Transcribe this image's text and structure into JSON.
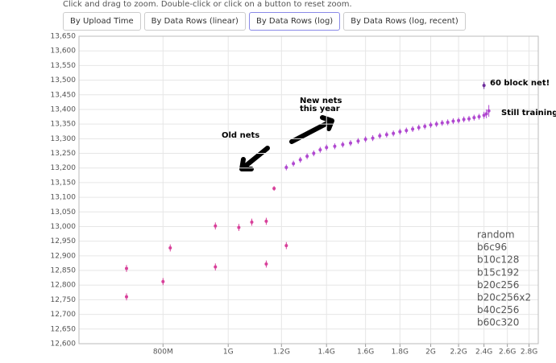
{
  "ui": {
    "instructions": "Click and drag to zoom. Double-click or click on a button to reset zoom.",
    "buttons": [
      "By Upload Time",
      "By Data Rows (linear)",
      "By Data Rows (log)",
      "By Data Rows (log, recent)"
    ]
  },
  "chart_data": {
    "type": "scatter",
    "log_x": true,
    "grid": true,
    "xlim": [
      600000000,
      2890000000
    ],
    "xticks": [
      {
        "value": 800000000,
        "label": "800M"
      },
      {
        "value": 1000000000,
        "label": "1G"
      },
      {
        "value": 1200000000,
        "label": "1.2G"
      },
      {
        "value": 1400000000,
        "label": "1.4G"
      },
      {
        "value": 1600000000,
        "label": "1.6G"
      },
      {
        "value": 1800000000,
        "label": "1.8G"
      },
      {
        "value": 2000000000,
        "label": "2G"
      },
      {
        "value": 2200000000,
        "label": "2.2G"
      },
      {
        "value": 2400000000,
        "label": "2.4G"
      },
      {
        "value": 2600000000,
        "label": "2.6G"
      },
      {
        "value": 2800000000,
        "label": "2.8G"
      }
    ],
    "ylim": [
      12600,
      13650
    ],
    "yticks": [
      {
        "value": 12600,
        "label": "12,600"
      },
      {
        "value": 12650,
        "label": "12,650"
      },
      {
        "value": 12700,
        "label": "12,700"
      },
      {
        "value": 12750,
        "label": "12,750"
      },
      {
        "value": 12800,
        "label": "12,800"
      },
      {
        "value": 12850,
        "label": "12,850"
      },
      {
        "value": 12900,
        "label": "12,900"
      },
      {
        "value": 12950,
        "label": "12,950"
      },
      {
        "value": 13000,
        "label": "13,000"
      },
      {
        "value": 13050,
        "label": "13,050"
      },
      {
        "value": 13100,
        "label": "13,100"
      },
      {
        "value": 13150,
        "label": "13,150"
      },
      {
        "value": 13200,
        "label": "13,200"
      },
      {
        "value": 13250,
        "label": "13,250"
      },
      {
        "value": 13300,
        "label": "13,300"
      },
      {
        "value": 13350,
        "label": "13,350"
      },
      {
        "value": 13400,
        "label": "13,400"
      },
      {
        "value": 13450,
        "label": "13,450"
      },
      {
        "value": 13500,
        "label": "13,500"
      },
      {
        "value": 13550,
        "label": "13,550"
      },
      {
        "value": 13600,
        "label": "13,600"
      },
      {
        "value": 13650,
        "label": "13,650"
      }
    ],
    "annotations": [
      "Old nets",
      "New nets",
      "this year",
      "60 block net!",
      "Still training!"
    ],
    "series": [
      {
        "name": "random",
        "color": "#a6d64a",
        "x": [],
        "values": [],
        "errors": []
      },
      {
        "name": "b6c96",
        "color": "#c8ac2e",
        "x": [],
        "values": [],
        "errors": []
      },
      {
        "name": "b10c128",
        "color": "#f08c3a",
        "x": [],
        "values": [],
        "errors": []
      },
      {
        "name": "b15c192",
        "color": "#ee6a48",
        "x": [],
        "values": [],
        "errors": []
      },
      {
        "name": "b20c256",
        "color": "#e6485e",
        "x": [],
        "values": [],
        "errors": []
      },
      {
        "name": "b20c256x2",
        "color": "#d8409a",
        "x": [
          706000000,
          706000000,
          800000000,
          820000000,
          957000000,
          957000000,
          1037000000,
          1084000000,
          1139000000,
          1139000000,
          1170000000,
          1220000000
        ],
        "values": [
          12857,
          12760,
          12812,
          12927,
          13002,
          12862,
          12997,
          13015,
          13018,
          12872,
          13130,
          12935
        ],
        "errors": [
          12,
          12,
          12,
          12,
          12,
          12,
          12,
          12,
          12,
          12,
          8,
          12
        ]
      },
      {
        "name": "b40c256",
        "color": "#b048d0",
        "x": [
          1220000000,
          1250000000,
          1280000000,
          1310000000,
          1340000000,
          1370000000,
          1400000000,
          1440000000,
          1480000000,
          1520000000,
          1560000000,
          1600000000,
          1640000000,
          1680000000,
          1720000000,
          1760000000,
          1800000000,
          1840000000,
          1880000000,
          1920000000,
          1960000000,
          2000000000,
          2040000000,
          2080000000,
          2120000000,
          2160000000,
          2200000000,
          2240000000,
          2280000000,
          2320000000,
          2360000000,
          2400000000,
          2420000000,
          2440000000
        ],
        "values": [
          13202,
          13215,
          13228,
          13240,
          13250,
          13262,
          13270,
          13274,
          13280,
          13285,
          13292,
          13298,
          13302,
          13310,
          13314,
          13318,
          13324,
          13328,
          13333,
          13338,
          13342,
          13347,
          13350,
          13354,
          13356,
          13360,
          13362,
          13366,
          13368,
          13372,
          13375,
          13380,
          13385,
          13395
        ],
        "errors": [
          10,
          10,
          10,
          10,
          10,
          10,
          10,
          10,
          10,
          10,
          10,
          10,
          10,
          10,
          10,
          10,
          10,
          10,
          10,
          10,
          10,
          10,
          10,
          10,
          10,
          10,
          10,
          10,
          10,
          10,
          10,
          12,
          15,
          20
        ]
      },
      {
        "name": "b60c320",
        "color": "#6c2c9a",
        "x": [
          2400000000
        ],
        "values": [
          13482
        ],
        "errors": [
          12
        ]
      }
    ]
  }
}
